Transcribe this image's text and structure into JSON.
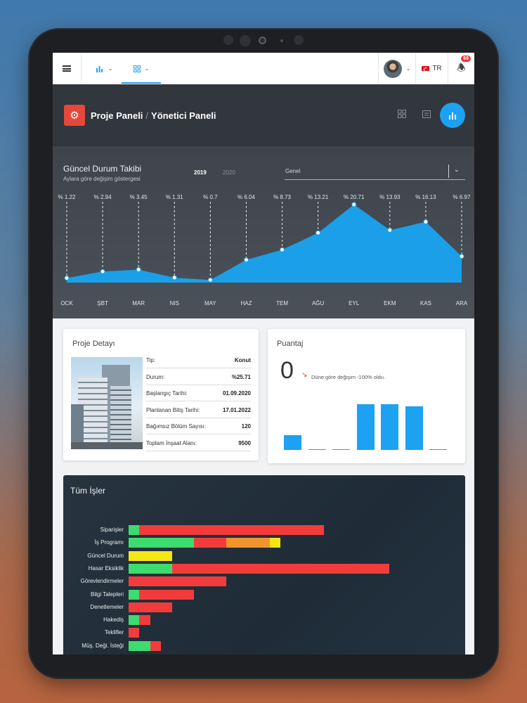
{
  "topbar": {
    "notification_count": "69",
    "language": "TR"
  },
  "header": {
    "title": "Proje Paneli",
    "separator": "/",
    "subtitle": "Yönetici Paneli"
  },
  "status_chart": {
    "title": "Güncel Durum Takibi",
    "subtitle": "Aylara göre değişim göstergesi",
    "years": [
      "2019",
      "2020"
    ],
    "selected_year": "2019",
    "filter_value": "Genel"
  },
  "chart_data": {
    "type": "area",
    "categories": [
      "OCK",
      "ŞBT",
      "MAR",
      "NIS",
      "MAY",
      "HAZ",
      "TEM",
      "AĞU",
      "EYL",
      "EKM",
      "KAS",
      "ARA"
    ],
    "series": [
      {
        "values": [
          1.22,
          2.94,
          3.45,
          1.31,
          0.7,
          6.04,
          8.73,
          13.21,
          20.71,
          13.93,
          16.13,
          6.97
        ]
      }
    ],
    "point_labels": [
      "% 1.22",
      "% 2.94",
      "% 3.45",
      "% 1.31",
      "% 0.7",
      "% 6.04",
      "% 8.73",
      "% 13.21",
      "% 20.71",
      "% 13.93",
      "% 16.13",
      "% 6.97"
    ],
    "ylim": [
      0,
      20.71
    ],
    "color": "#1a9fe8"
  },
  "project_detail": {
    "title": "Proje Detayı",
    "rows": [
      {
        "key": "Tip:",
        "value": "Konut"
      },
      {
        "key": "Durum:",
        "value": "%25.71"
      },
      {
        "key": "Başlangıç Tarihi:",
        "value": "01.09.2020"
      },
      {
        "key": "Planlanan Bitiş Tarihi:",
        "value": "17.01.2022"
      },
      {
        "key": "Bağımsız Bölüm Sayısı:",
        "value": "120"
      },
      {
        "key": "Toplam İnşaat Alanı:",
        "value": "9500"
      }
    ]
  },
  "puantaj": {
    "title": "Puantaj",
    "value": "0",
    "note": "Düne göre değişim -100% oldu.",
    "bars": [
      0.33,
      0.02,
      0.02,
      1.0,
      1.0,
      0.95,
      0.02
    ]
  },
  "jobs": {
    "title": "Tüm İşler",
    "colors": {
      "green": "#3ddc6e",
      "red": "#f23c3c",
      "orange": "#f0952e",
      "yellow": "#f5e616"
    },
    "rows": [
      {
        "label": "Siparişler",
        "segments": [
          {
            "color": "green",
            "value": 5
          },
          {
            "color": "red",
            "value": 85
          }
        ]
      },
      {
        "label": "İş Programı",
        "segments": [
          {
            "color": "green",
            "value": 30
          },
          {
            "color": "red",
            "value": 15
          },
          {
            "color": "orange",
            "value": 20
          },
          {
            "color": "yellow",
            "value": 5
          }
        ]
      },
      {
        "label": "Güncel Durum",
        "segments": [
          {
            "color": "yellow",
            "value": 20
          }
        ]
      },
      {
        "label": "Hasar Eksiklik",
        "segments": [
          {
            "color": "green",
            "value": 20
          },
          {
            "color": "red",
            "value": 100
          }
        ]
      },
      {
        "label": "Görevlendirmeler",
        "segments": [
          {
            "color": "red",
            "value": 45
          }
        ]
      },
      {
        "label": "Bilgi Talepleri",
        "segments": [
          {
            "color": "green",
            "value": 5
          },
          {
            "color": "red",
            "value": 25
          }
        ]
      },
      {
        "label": "Denetlemeler",
        "segments": [
          {
            "color": "red",
            "value": 20
          }
        ]
      },
      {
        "label": "Hakediş",
        "segments": [
          {
            "color": "green",
            "value": 5
          },
          {
            "color": "red",
            "value": 5
          }
        ]
      },
      {
        "label": "Teklifler",
        "segments": [
          {
            "color": "red",
            "value": 5
          }
        ]
      },
      {
        "label": "Müş. Deği. İsteği",
        "segments": [
          {
            "color": "green",
            "value": 10
          },
          {
            "color": "red",
            "value": 5
          }
        ]
      }
    ]
  }
}
